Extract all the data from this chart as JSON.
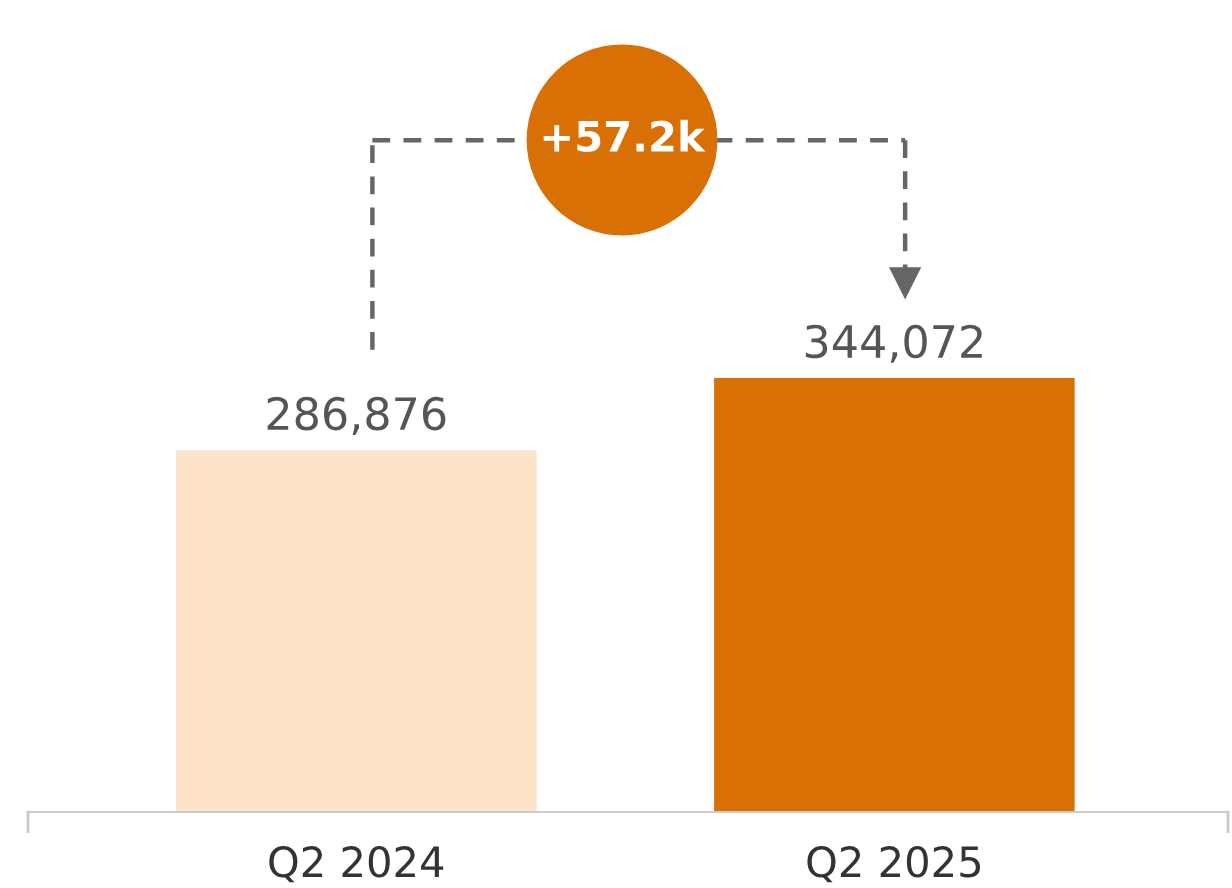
{
  "chart_data": {
    "type": "bar",
    "categories": [
      "Q2 2024",
      "Q2 2025"
    ],
    "values": [
      286876,
      344072
    ],
    "colors": [
      "#fce3c9",
      "#d97006"
    ],
    "value_labels": [
      "286,876",
      "344,072"
    ],
    "annotations": [
      "+57.2k"
    ]
  }
}
